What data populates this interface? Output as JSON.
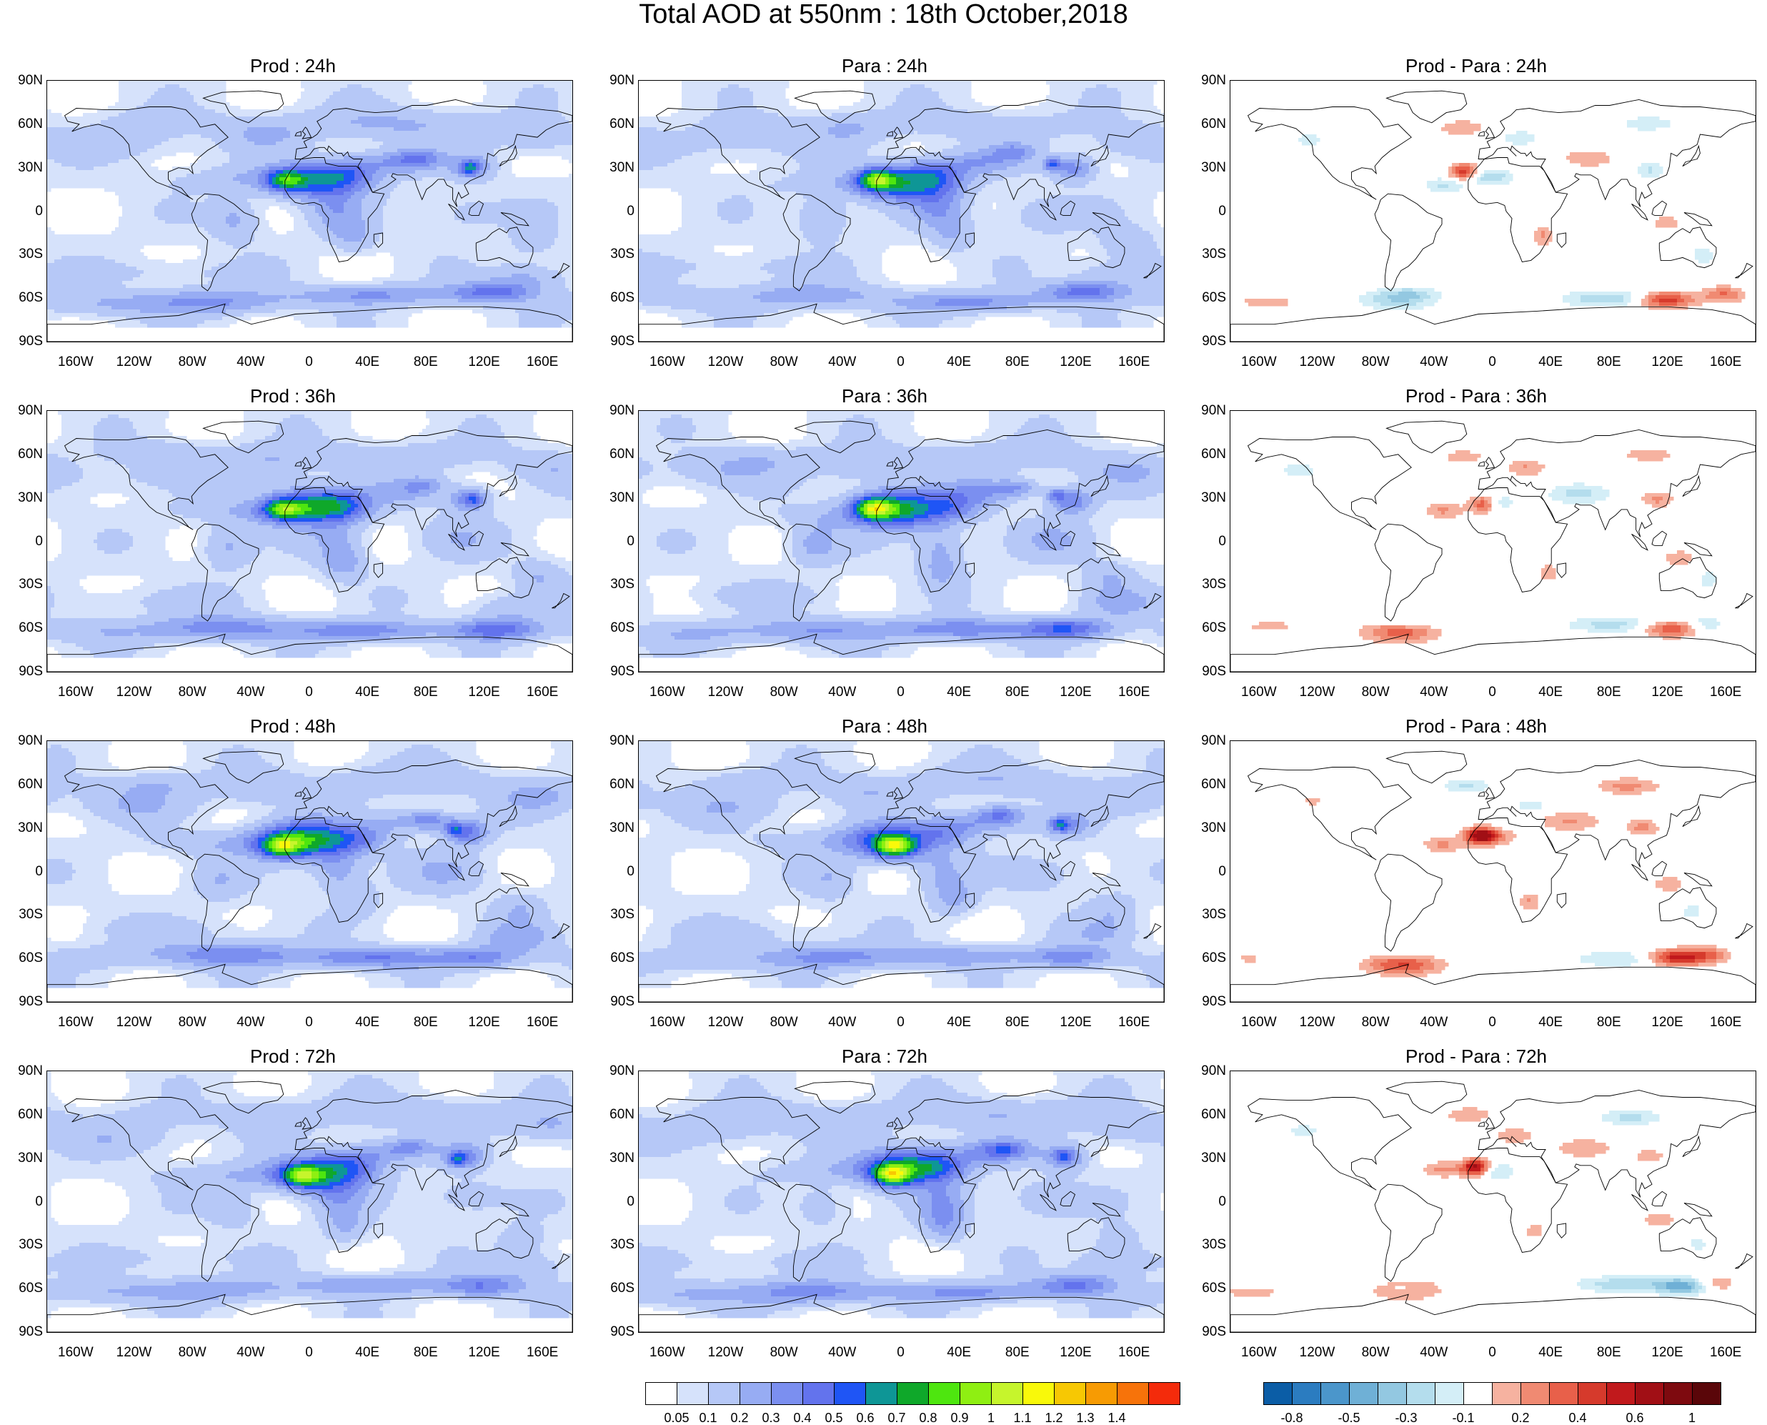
{
  "title": "Total AOD at 550nm : 18th October,2018",
  "panels": [
    {
      "title": "Prod : 24h",
      "kind": "aod",
      "variant": 0
    },
    {
      "title": "Para : 24h",
      "kind": "aod",
      "variant": 1
    },
    {
      "title": "Prod - Para : 24h",
      "kind": "diff",
      "variant": 0
    },
    {
      "title": "Prod : 36h",
      "kind": "aod",
      "variant": 2
    },
    {
      "title": "Para : 36h",
      "kind": "aod",
      "variant": 3
    },
    {
      "title": "Prod - Para : 36h",
      "kind": "diff",
      "variant": 1
    },
    {
      "title": "Prod : 48h",
      "kind": "aod",
      "variant": 4
    },
    {
      "title": "Para : 48h",
      "kind": "aod",
      "variant": 5
    },
    {
      "title": "Prod - Para : 48h",
      "kind": "diff",
      "variant": 2
    },
    {
      "title": "Prod : 72h",
      "kind": "aod",
      "variant": 6
    },
    {
      "title": "Para : 72h",
      "kind": "aod",
      "variant": 7
    },
    {
      "title": "Prod - Para : 72h",
      "kind": "diff",
      "variant": 3
    }
  ],
  "lat_labels": [
    "90N",
    "60N",
    "30N",
    "0",
    "30S",
    "60S",
    "90S"
  ],
  "lon_labels": [
    "160W",
    "120W",
    "80W",
    "40W",
    "0",
    "40E",
    "80E",
    "120E",
    "160E"
  ],
  "colorbar_aod": {
    "labels": [
      "0.05",
      "0.1",
      "0.2",
      "0.3",
      "0.4",
      "0.5",
      "0.6",
      "0.7",
      "0.8",
      "0.9",
      "1",
      "1.1",
      "1.2",
      "1.3",
      "1.4"
    ],
    "colors": [
      "#ffffff",
      "#d6e2fb",
      "#b6c8f7",
      "#97acf3",
      "#7b8ff0",
      "#6373ed",
      "#1f55f5",
      "#0e9696",
      "#0fa82a",
      "#4ee60f",
      "#8fef12",
      "#c6f52c",
      "#f9f90a",
      "#f7c803",
      "#f79b03",
      "#f7730a",
      "#f42b0b"
    ]
  },
  "colorbar_diff": {
    "labels": [
      "-0.8",
      "-0.5",
      "-0.3",
      "-0.1",
      "0.2",
      "0.4",
      "0.6",
      "1"
    ],
    "colors": [
      "#0b5da6",
      "#2b7cc0",
      "#4b96cb",
      "#6fb0d6",
      "#93c8e1",
      "#b4dded",
      "#d4eef7",
      "#ffffff",
      "#f6b2a0",
      "#f08a72",
      "#e8604a",
      "#d63a2c",
      "#c1191c",
      "#a10f15",
      "#7e0a0f",
      "#5a0609"
    ]
  }
}
